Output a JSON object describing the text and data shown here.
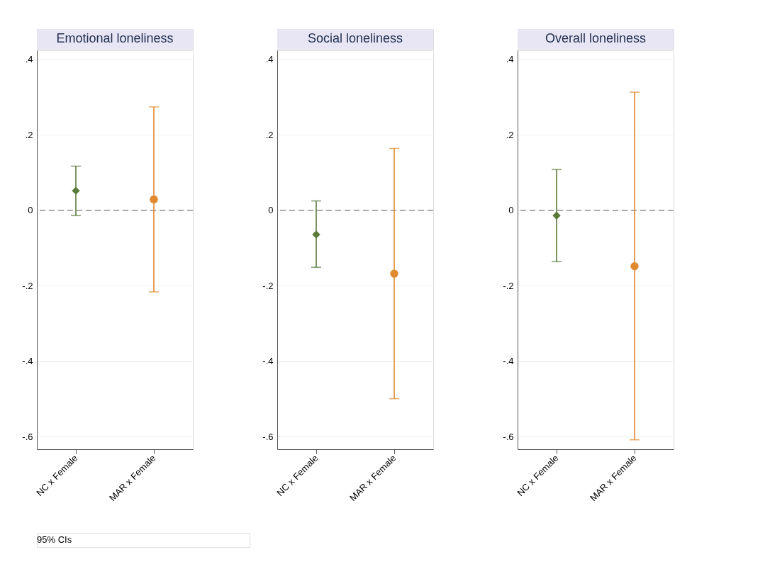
{
  "chart_data": [
    {
      "type": "scatter",
      "title": "Emotional loneliness",
      "categories": [
        "NC x Female",
        "MAR x Female"
      ],
      "series": [
        {
          "color": "#5a7a3a",
          "marker": "diamond",
          "values": [
            0.052,
            null
          ],
          "errors": [
            [
              -0.014,
              0.117
            ],
            null
          ]
        },
        {
          "color": "#e08a30",
          "marker": "circle",
          "values": [
            null,
            0.029
          ],
          "errors": [
            null,
            [
              -0.216,
              0.274
            ]
          ]
        }
      ],
      "ylim": [
        -0.633,
        0.424
      ],
      "yticks": [
        {
          "value": -0.6,
          "label": "-.6"
        },
        {
          "value": -0.4,
          "label": "-.4"
        },
        {
          "value": -0.2,
          "label": "-.2"
        },
        0,
        {
          "value": 0.2,
          "label": ".2"
        },
        {
          "value": 0.4,
          "label": ".4"
        }
      ],
      "grid": "y",
      "ref_lines": [
        {
          "axis": "y",
          "value": 0,
          "color": "#a0a0a0",
          "line_style": "dashed"
        }
      ],
      "annotations": [
        "95% CIs"
      ]
    },
    {
      "type": "scatter",
      "title": "Social loneliness",
      "categories": [
        "NC x Female",
        "MAR x Female"
      ],
      "series": [
        {
          "color": "#5a7a3a",
          "marker": "diamond",
          "values": [
            -0.064,
            null
          ],
          "errors": [
            [
              -0.151,
              0.025
            ],
            null
          ]
        },
        {
          "color": "#e08a30",
          "marker": "circle",
          "values": [
            null,
            -0.168
          ],
          "errors": [
            null,
            [
              -0.499,
              0.164
            ]
          ]
        }
      ],
      "ylim": [
        -0.633,
        0.424
      ],
      "yticks": [
        {
          "value": -0.6,
          "label": "-.6"
        },
        {
          "value": -0.4,
          "label": "-.4"
        },
        {
          "value": -0.2,
          "label": "-.2"
        },
        0,
        {
          "value": 0.2,
          "label": ".2"
        },
        {
          "value": 0.4,
          "label": ".4"
        }
      ],
      "grid": "y",
      "ref_lines": [
        {
          "axis": "y",
          "value": 0,
          "color": "#a0a0a0",
          "line_style": "dashed"
        }
      ]
    },
    {
      "type": "scatter",
      "title": "Overall loneliness",
      "categories": [
        "NC x Female",
        "MAR x Female"
      ],
      "series": [
        {
          "color": "#5a7a3a",
          "marker": "diamond",
          "values": [
            -0.014,
            null
          ],
          "errors": [
            [
              -0.136,
              0.108
            ],
            null
          ]
        },
        {
          "color": "#e08a30",
          "marker": "circle",
          "values": [
            null,
            -0.148
          ],
          "errors": [
            null,
            [
              -0.608,
              0.313
            ]
          ]
        }
      ],
      "ylim": [
        -0.633,
        0.424
      ],
      "yticks": [
        {
          "value": -0.6,
          "label": "-.6"
        },
        {
          "value": -0.4,
          "label": "-.4"
        },
        {
          "value": -0.2,
          "label": "-.2"
        },
        0,
        {
          "value": 0.2,
          "label": ".2"
        },
        {
          "value": 0.4,
          "label": ".4"
        }
      ],
      "grid": "y",
      "ref_lines": [
        {
          "axis": "y",
          "value": 0,
          "color": "#a0a0a0",
          "line_style": "dashed"
        }
      ]
    }
  ]
}
